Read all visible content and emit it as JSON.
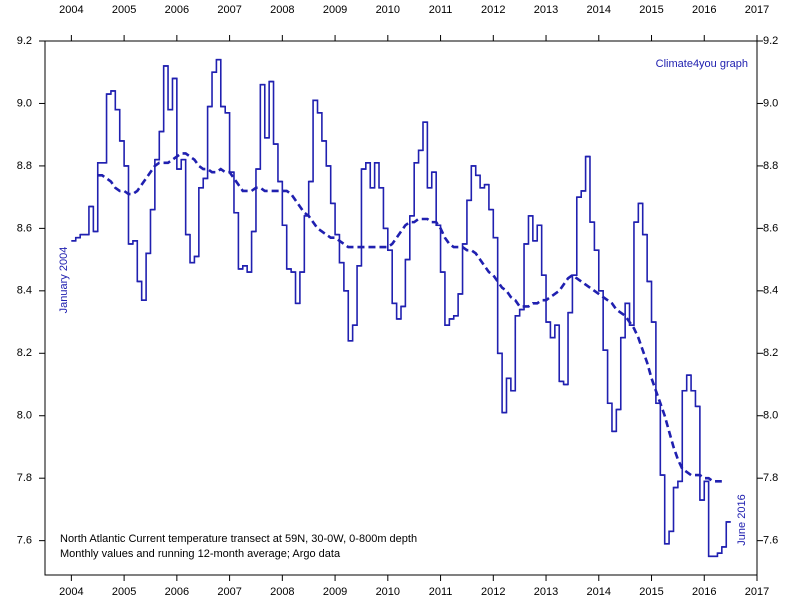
{
  "chart_data": {
    "type": "step-line",
    "annotations": {
      "credit": "Climate4you graph",
      "start": "January 2004",
      "end": "June 2016",
      "caption": [
        "North Atlantic Current temperature transect at 59N, 30-0W, 0-800m depth",
        "Monthly values and running 12-month average; Argo data"
      ]
    },
    "x": [
      2004.0,
      2004.083,
      2004.167,
      2004.25,
      2004.333,
      2004.417,
      2004.5,
      2004.583,
      2004.667,
      2004.75,
      2004.833,
      2004.917,
      2005.0,
      2005.083,
      2005.167,
      2005.25,
      2005.333,
      2005.417,
      2005.5,
      2005.583,
      2005.667,
      2005.75,
      2005.833,
      2005.917,
      2006.0,
      2006.083,
      2006.167,
      2006.25,
      2006.333,
      2006.417,
      2006.5,
      2006.583,
      2006.667,
      2006.75,
      2006.833,
      2006.917,
      2007.0,
      2007.083,
      2007.167,
      2007.25,
      2007.333,
      2007.417,
      2007.5,
      2007.583,
      2007.667,
      2007.75,
      2007.833,
      2007.917,
      2008.0,
      2008.083,
      2008.167,
      2008.25,
      2008.333,
      2008.417,
      2008.5,
      2008.583,
      2008.667,
      2008.75,
      2008.833,
      2008.917,
      2009.0,
      2009.083,
      2009.167,
      2009.25,
      2009.333,
      2009.417,
      2009.5,
      2009.583,
      2009.667,
      2009.75,
      2009.833,
      2009.917,
      2010.0,
      2010.083,
      2010.167,
      2010.25,
      2010.333,
      2010.417,
      2010.5,
      2010.583,
      2010.667,
      2010.75,
      2010.833,
      2010.917,
      2011.0,
      2011.083,
      2011.167,
      2011.25,
      2011.333,
      2011.417,
      2011.5,
      2011.583,
      2011.667,
      2011.75,
      2011.833,
      2011.917,
      2012.0,
      2012.083,
      2012.167,
      2012.25,
      2012.333,
      2012.417,
      2012.5,
      2012.583,
      2012.667,
      2012.75,
      2012.833,
      2012.917,
      2013.0,
      2013.083,
      2013.167,
      2013.25,
      2013.333,
      2013.417,
      2013.5,
      2013.583,
      2013.667,
      2013.75,
      2013.833,
      2013.917,
      2014.0,
      2014.083,
      2014.167,
      2014.25,
      2014.333,
      2014.417,
      2014.5,
      2014.583,
      2014.667,
      2014.75,
      2014.833,
      2014.917,
      2015.0,
      2015.083,
      2015.167,
      2015.25,
      2015.333,
      2015.417,
      2015.5,
      2015.583,
      2015.667,
      2015.75,
      2015.833,
      2015.917,
      2016.0,
      2016.083,
      2016.167,
      2016.25,
      2016.333,
      2016.417
    ],
    "series": [
      {
        "style": "step",
        "color": "#2020b0",
        "values": [
          8.56,
          8.57,
          8.58,
          8.58,
          8.67,
          8.59,
          8.81,
          8.81,
          9.03,
          9.04,
          8.98,
          8.88,
          8.8,
          8.55,
          8.56,
          8.43,
          8.37,
          8.52,
          8.66,
          8.82,
          8.91,
          9.12,
          8.98,
          9.08,
          8.79,
          8.82,
          8.58,
          8.49,
          8.51,
          8.73,
          8.76,
          8.99,
          9.1,
          9.14,
          8.99,
          8.97,
          8.78,
          8.65,
          8.47,
          8.48,
          8.46,
          8.59,
          8.79,
          9.06,
          8.89,
          9.07,
          8.87,
          8.75,
          8.61,
          8.47,
          8.46,
          8.36,
          8.46,
          8.64,
          8.75,
          9.01,
          8.97,
          8.88,
          8.8,
          8.68,
          8.58,
          8.49,
          8.4,
          8.24,
          8.29,
          8.48,
          8.79,
          8.81,
          8.73,
          8.81,
          8.73,
          8.6,
          8.53,
          8.36,
          8.31,
          8.35,
          8.5,
          8.64,
          8.81,
          8.85,
          8.94,
          8.73,
          8.78,
          8.61,
          8.46,
          8.29,
          8.31,
          8.32,
          8.39,
          8.55,
          8.69,
          8.8,
          8.77,
          8.73,
          8.74,
          8.66,
          8.57,
          8.2,
          8.01,
          8.12,
          8.08,
          8.32,
          8.34,
          8.55,
          8.64,
          8.56,
          8.61,
          8.45,
          8.3,
          8.25,
          8.29,
          8.11,
          8.1,
          8.33,
          8.45,
          8.7,
          8.72,
          8.83,
          8.62,
          8.53,
          8.4,
          8.21,
          8.04,
          7.95,
          8.02,
          8.25,
          8.36,
          8.29,
          8.62,
          8.68,
          8.58,
          8.43,
          8.3,
          8.04,
          7.81,
          7.59,
          7.63,
          7.77,
          7.79,
          8.08,
          8.13,
          8.08,
          8.03,
          7.73,
          7.79,
          7.55,
          7.55,
          7.56,
          7.58,
          7.66
        ]
      },
      {
        "style": "dashed",
        "color": "#2020b0",
        "values": [
          null,
          null,
          null,
          null,
          null,
          null,
          8.77,
          8.77,
          8.76,
          8.75,
          8.73,
          8.72,
          8.72,
          8.71,
          8.71,
          8.72,
          8.74,
          8.76,
          8.78,
          8.8,
          8.81,
          8.81,
          8.81,
          8.82,
          8.83,
          8.84,
          8.84,
          8.83,
          8.82,
          8.8,
          8.79,
          8.79,
          8.78,
          8.78,
          8.79,
          8.78,
          8.78,
          8.76,
          8.74,
          8.72,
          8.72,
          8.72,
          8.73,
          8.73,
          8.72,
          8.72,
          8.72,
          8.72,
          8.72,
          8.72,
          8.71,
          8.69,
          8.67,
          8.65,
          8.64,
          8.62,
          8.6,
          8.59,
          8.58,
          8.57,
          8.57,
          8.56,
          8.55,
          8.54,
          8.54,
          8.54,
          8.54,
          8.54,
          8.54,
          8.54,
          8.54,
          8.54,
          8.54,
          8.55,
          8.57,
          8.59,
          8.61,
          8.62,
          8.62,
          8.63,
          8.63,
          8.63,
          8.62,
          8.62,
          8.6,
          8.57,
          8.55,
          8.54,
          8.54,
          8.54,
          8.53,
          8.53,
          8.52,
          8.5,
          8.48,
          8.46,
          8.45,
          8.43,
          8.41,
          8.4,
          8.38,
          8.37,
          8.35,
          8.35,
          8.35,
          8.36,
          8.36,
          8.37,
          8.37,
          8.38,
          8.39,
          8.4,
          8.42,
          8.44,
          8.45,
          8.44,
          8.43,
          8.42,
          8.41,
          8.4,
          8.39,
          8.38,
          8.37,
          8.36,
          8.34,
          8.33,
          8.32,
          8.3,
          8.28,
          8.25,
          8.21,
          8.17,
          8.12,
          8.08,
          8.04,
          8.0,
          7.95,
          7.9,
          7.86,
          7.83,
          7.82,
          7.81,
          7.81,
          7.81,
          7.8,
          7.8,
          7.79,
          7.79,
          7.79,
          null
        ]
      }
    ],
    "xlim": [
      2003.5,
      2017
    ],
    "xticks": [
      2004,
      2005,
      2006,
      2007,
      2008,
      2009,
      2010,
      2011,
      2012,
      2013,
      2014,
      2015,
      2016,
      2017
    ],
    "ylim": [
      7.49,
      9.2
    ],
    "yticks": [
      7.6,
      7.8,
      {
        "value": 8.0,
        "label": "8.0"
      },
      8.2,
      8.4,
      8.6,
      8.8,
      {
        "value": 9.0,
        "label": "9.0"
      },
      9.2
    ]
  }
}
